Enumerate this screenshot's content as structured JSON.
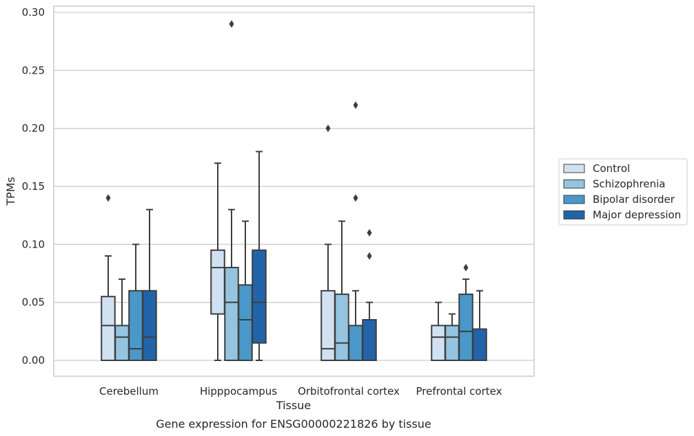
{
  "caption": "Gene expression for ENSG00000221826 by tissue",
  "chart_data": {
    "type": "box",
    "xlabel": "Tissue",
    "ylabel": "TPMs",
    "ylim": [
      -0.014,
      0.305
    ],
    "yticks": [
      "0.00",
      "0.05",
      "0.10",
      "0.15",
      "0.20",
      "0.25",
      "0.30"
    ],
    "grid": "horizontal",
    "legend_position": "right",
    "categories": [
      "Cerebellum",
      "Hipppocampus",
      "Orbitofrontal cortex",
      "Prefrontal cortex"
    ],
    "series": [
      {
        "name": "Control",
        "color": "#d0e1f2",
        "boxes": [
          {
            "whisker_low": 0.0,
            "q1": 0.0,
            "median": 0.03,
            "q3": 0.055,
            "whisker_high": 0.09,
            "outliers": [
              0.14
            ]
          },
          {
            "whisker_low": 0.0,
            "q1": 0.04,
            "median": 0.08,
            "q3": 0.095,
            "whisker_high": 0.17,
            "outliers": []
          },
          {
            "whisker_low": 0.0,
            "q1": 0.0,
            "median": 0.01,
            "q3": 0.06,
            "whisker_high": 0.1,
            "outliers": [
              0.2
            ]
          },
          {
            "whisker_low": 0.0,
            "q1": 0.0,
            "median": 0.02,
            "q3": 0.03,
            "whisker_high": 0.05,
            "outliers": []
          }
        ]
      },
      {
        "name": "Schizophrenia",
        "color": "#94c4df",
        "boxes": [
          {
            "whisker_low": 0.0,
            "q1": 0.0,
            "median": 0.02,
            "q3": 0.03,
            "whisker_high": 0.07,
            "outliers": []
          },
          {
            "whisker_low": 0.0,
            "q1": 0.0,
            "median": 0.05,
            "q3": 0.08,
            "whisker_high": 0.13,
            "outliers": [
              0.29
            ]
          },
          {
            "whisker_low": 0.0,
            "q1": 0.0,
            "median": 0.015,
            "q3": 0.057,
            "whisker_high": 0.12,
            "outliers": []
          },
          {
            "whisker_low": 0.0,
            "q1": 0.0,
            "median": 0.02,
            "q3": 0.03,
            "whisker_high": 0.04,
            "outliers": []
          }
        ]
      },
      {
        "name": "Bipolar disorder",
        "color": "#4a98c9",
        "boxes": [
          {
            "whisker_low": 0.0,
            "q1": 0.0,
            "median": 0.01,
            "q3": 0.06,
            "whisker_high": 0.1,
            "outliers": []
          },
          {
            "whisker_low": 0.0,
            "q1": 0.0,
            "median": 0.035,
            "q3": 0.065,
            "whisker_high": 0.12,
            "outliers": []
          },
          {
            "whisker_low": 0.0,
            "q1": 0.0,
            "median": 0.0,
            "q3": 0.03,
            "whisker_high": 0.06,
            "outliers": [
              0.22,
              0.14
            ]
          },
          {
            "whisker_low": 0.0,
            "q1": 0.0,
            "median": 0.025,
            "q3": 0.057,
            "whisker_high": 0.07,
            "outliers": [
              0.08
            ]
          }
        ]
      },
      {
        "name": "Major depression",
        "color": "#2264aa",
        "boxes": [
          {
            "whisker_low": 0.0,
            "q1": 0.0,
            "median": 0.02,
            "q3": 0.06,
            "whisker_high": 0.13,
            "outliers": []
          },
          {
            "whisker_low": 0.0,
            "q1": 0.015,
            "median": 0.05,
            "q3": 0.095,
            "whisker_high": 0.18,
            "outliers": []
          },
          {
            "whisker_low": 0.0,
            "q1": 0.0,
            "median": 0.0,
            "q3": 0.035,
            "whisker_high": 0.05,
            "outliers": [
              0.11,
              0.09
            ]
          },
          {
            "whisker_low": 0.0,
            "q1": 0.0,
            "median": 0.0,
            "q3": 0.027,
            "whisker_high": 0.06,
            "outliers": []
          }
        ]
      }
    ]
  }
}
